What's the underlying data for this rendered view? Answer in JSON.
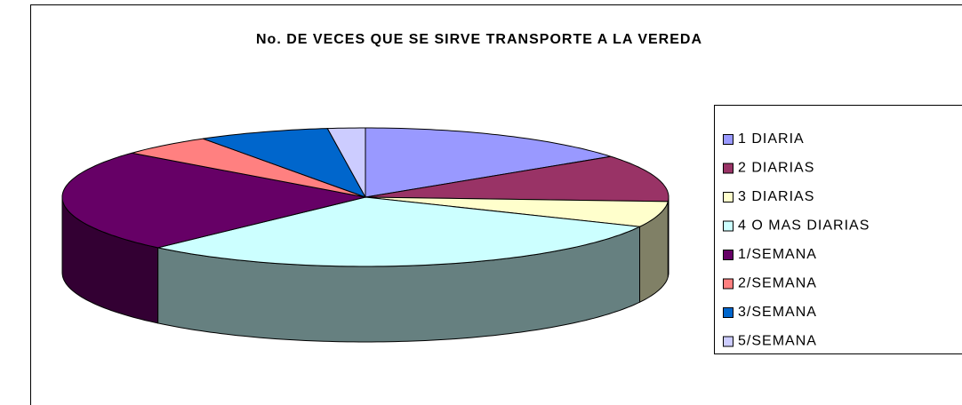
{
  "chart_data": {
    "type": "pie",
    "title": "No. DE VECES QUE SE SIRVE TRANSPORTE A LA VEREDA",
    "categories": [
      "1 DIARIA",
      "2 DIARIAS",
      "3 DIARIAS",
      "4 O MAS DIARIAS",
      "1/SEMANA",
      "2/SEMANA",
      "3/SEMANA",
      "5/SEMANA"
    ],
    "values": [
      15,
      11,
      6,
      30,
      24,
      5,
      7,
      2
    ],
    "colors": [
      "#9999ff",
      "#993366",
      "#ffffcc",
      "#ccffff",
      "#660066",
      "#ff8080",
      "#0066cc",
      "#ccccff"
    ],
    "legend": "right"
  }
}
